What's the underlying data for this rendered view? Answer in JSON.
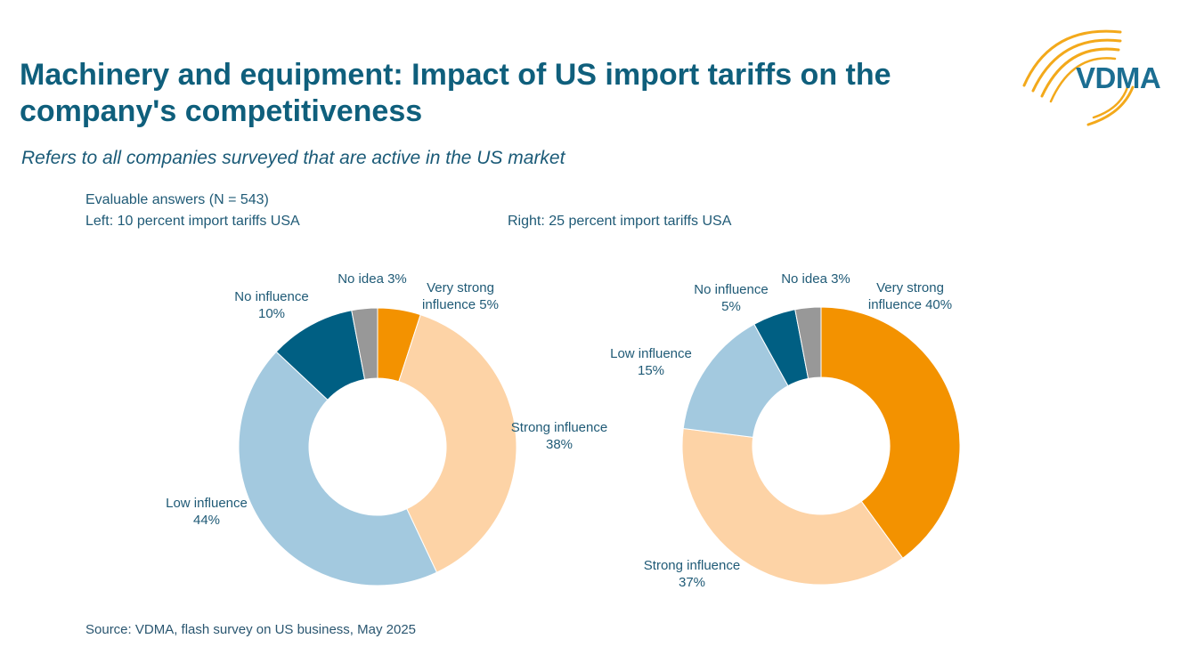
{
  "header": {
    "title": "Machinery and equipment: Impact of US import tariffs on the company's competitiveness",
    "subtitle": "Refers to all companies surveyed that are active in the US market"
  },
  "notes": {
    "answers": "Evaluable answers (N = 543)",
    "left": "Left: 10 percent import tariffs USA",
    "right": "Right: 25 percent import tariffs USA"
  },
  "footer": {
    "source": "Source: VDMA, flash survey on US business, May 2025"
  },
  "logo": {
    "text": "VDMA",
    "arc_color": "#f3a91b",
    "text_color": "#1b6e92"
  },
  "colors": {
    "very_strong": "#f39200",
    "strong": "#fdd3a6",
    "low": "#a3c9df",
    "none": "#005f83",
    "no_idea": "#989898"
  },
  "chart_data": [
    {
      "type": "pie",
      "variant": "donut",
      "title": "",
      "slices": [
        {
          "label": "Very strong influence",
          "value": 5,
          "pct_text": "5%",
          "color": "#f39200"
        },
        {
          "label": "Strong influence",
          "value": 38,
          "pct_text": "38%",
          "color": "#fdd3a6"
        },
        {
          "label": "Low influence",
          "value": 44,
          "pct_text": "44%",
          "color": "#a3c9df"
        },
        {
          "label": "No influence",
          "value": 10,
          "pct_text": "10%",
          "color": "#005f83"
        },
        {
          "label": "No idea",
          "value": 3,
          "pct_text": "3%",
          "color": "#989898"
        }
      ]
    },
    {
      "type": "pie",
      "variant": "donut",
      "title": "",
      "slices": [
        {
          "label": "Very strong influence",
          "value": 40,
          "pct_text": "40%",
          "color": "#f39200"
        },
        {
          "label": "Strong influence",
          "value": 37,
          "pct_text": "37%",
          "color": "#fdd3a6"
        },
        {
          "label": "Low influence",
          "value": 15,
          "pct_text": "15%",
          "color": "#a3c9df"
        },
        {
          "label": "No influence",
          "value": 5,
          "pct_text": "5%",
          "color": "#005f83"
        },
        {
          "label": "No idea",
          "value": 3,
          "pct_text": "3%",
          "color": "#989898"
        }
      ]
    }
  ]
}
